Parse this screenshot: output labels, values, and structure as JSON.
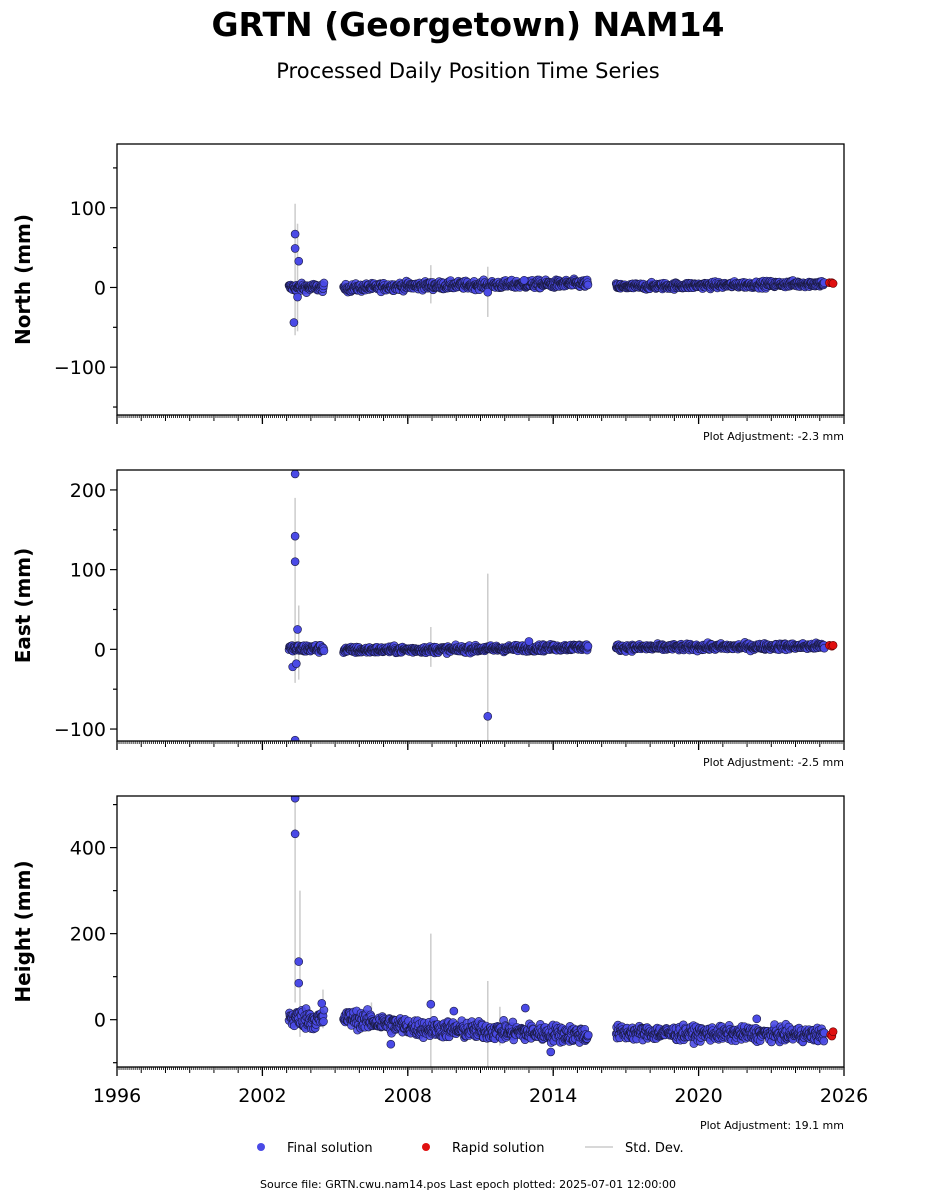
{
  "title": "GRTN (Georgetown) NAM14",
  "subtitle": "Processed Daily Position Time Series",
  "source_note": "Source file: GRTN.cwu.nam14.pos  Last epoch plotted: 2025-07-01 12:00:00",
  "legend": {
    "final": "Final solution",
    "rapid": "Rapid solution",
    "stddev": "Std. Dev."
  },
  "colors": {
    "final": "#4a4ae6",
    "rapid": "#e01010",
    "stddev": "#cccccc",
    "edge": "#1a1a40"
  },
  "x_axis": {
    "range": [
      1996,
      2026
    ],
    "ticks": [
      1996,
      2002,
      2008,
      2014,
      2020,
      2026
    ],
    "tick_labels": [
      "1996",
      "2002",
      "2008",
      "2014",
      "2020",
      "2026"
    ]
  },
  "chart_data": [
    {
      "type": "scatter",
      "ylabel": "North (mm)",
      "ylim": [
        -160,
        180
      ],
      "yticks": [
        -100,
        0,
        100
      ],
      "ytick_labels": [
        "−100",
        "0",
        "100"
      ],
      "adjustment": "Plot Adjustment: -2.3 mm",
      "final": {
        "segments": [
          {
            "start": 2003.1,
            "end": 2004.55,
            "y0": 0,
            "y1": 0,
            "noise": 2.5
          },
          {
            "start": 2005.35,
            "end": 2008.0,
            "y0": -1,
            "y1": 2,
            "noise": 2.5
          },
          {
            "start": 2008.0,
            "end": 2015.45,
            "y0": 2,
            "y1": 5,
            "noise": 2.5
          },
          {
            "start": 2016.6,
            "end": 2025.2,
            "y0": 1,
            "y1": 5,
            "noise": 2
          }
        ],
        "outliers": [
          [
            2003.35,
            67
          ],
          [
            2003.35,
            49
          ],
          [
            2003.5,
            33
          ],
          [
            2003.3,
            -44
          ],
          [
            2003.45,
            -12
          ],
          [
            2011.3,
            -6
          ],
          [
            2012.8,
            9
          ]
        ]
      },
      "rapid": [
        [
          2025.4,
          6
        ],
        [
          2025.5,
          6
        ],
        [
          2025.55,
          5
        ]
      ],
      "stddev": [
        [
          2003.35,
          -60,
          105
        ],
        [
          2003.45,
          -55,
          80
        ],
        [
          2008.95,
          -20,
          28
        ],
        [
          2011.3,
          -37,
          26
        ]
      ]
    },
    {
      "type": "scatter",
      "ylabel": "East (mm)",
      "ylim": [
        -115,
        225
      ],
      "yticks": [
        -100,
        0,
        100,
        200
      ],
      "ytick_labels": [
        "−100",
        "0",
        "100",
        "200"
      ],
      "adjustment": "Plot Adjustment: -2.5 mm",
      "final": {
        "segments": [
          {
            "start": 2003.1,
            "end": 2004.55,
            "y0": 1,
            "y1": 1,
            "noise": 2.5
          },
          {
            "start": 2005.35,
            "end": 2010.0,
            "y0": -1,
            "y1": 0,
            "noise": 2
          },
          {
            "start": 2010.0,
            "end": 2015.45,
            "y0": 0,
            "y1": 3,
            "noise": 2
          },
          {
            "start": 2016.6,
            "end": 2025.2,
            "y0": 2,
            "y1": 4,
            "noise": 2
          }
        ],
        "outliers": [
          [
            2003.35,
            220
          ],
          [
            2003.35,
            142
          ],
          [
            2003.35,
            110
          ],
          [
            2003.45,
            25
          ],
          [
            2003.25,
            -22
          ],
          [
            2003.4,
            -18
          ],
          [
            2003.35,
            -114
          ],
          [
            2011.3,
            -84
          ],
          [
            2013.0,
            10
          ]
        ]
      },
      "rapid": [
        [
          2025.4,
          5
        ],
        [
          2025.5,
          4
        ],
        [
          2025.55,
          5
        ]
      ],
      "stddev": [
        [
          2003.35,
          -42,
          190
        ],
        [
          2003.5,
          -38,
          55
        ],
        [
          2008.95,
          -22,
          28
        ],
        [
          2011.3,
          -115,
          95
        ]
      ]
    },
    {
      "type": "scatter",
      "ylabel": "Height (mm)",
      "ylim": [
        -110,
        520
      ],
      "yticks": [
        0,
        200,
        400
      ],
      "ytick_labels": [
        "0",
        "200",
        "400"
      ],
      "adjustment": "Plot Adjustment: 19.1 mm",
      "final": {
        "segments": [
          {
            "start": 2003.1,
            "end": 2004.55,
            "y0": 5,
            "y1": 0,
            "noise": 12
          },
          {
            "start": 2005.35,
            "end": 2008.5,
            "y0": 5,
            "y1": -20,
            "noise": 10
          },
          {
            "start": 2008.5,
            "end": 2015.45,
            "y0": -20,
            "y1": -35,
            "noise": 10
          },
          {
            "start": 2016.6,
            "end": 2025.2,
            "y0": -30,
            "y1": -35,
            "noise": 8
          }
        ],
        "outliers": [
          [
            2003.35,
            515
          ],
          [
            2003.35,
            432
          ],
          [
            2003.5,
            135
          ],
          [
            2003.5,
            85
          ],
          [
            2004.45,
            38
          ],
          [
            2008.95,
            36
          ],
          [
            2009.9,
            20
          ],
          [
            2012.85,
            27
          ],
          [
            2013.9,
            -75
          ],
          [
            2007.3,
            -57
          ],
          [
            2022.4,
            2
          ]
        ]
      },
      "rapid": [
        [
          2025.45,
          -35
        ],
        [
          2025.5,
          -38
        ],
        [
          2025.55,
          -28
        ]
      ],
      "stddev": [
        [
          2003.35,
          40,
          510
        ],
        [
          2003.55,
          -40,
          300
        ],
        [
          2004.5,
          -20,
          70
        ],
        [
          2006.5,
          -10,
          40
        ],
        [
          2008.95,
          -110,
          200
        ],
        [
          2011.3,
          -110,
          90
        ],
        [
          2011.8,
          -60,
          30
        ]
      ]
    }
  ]
}
